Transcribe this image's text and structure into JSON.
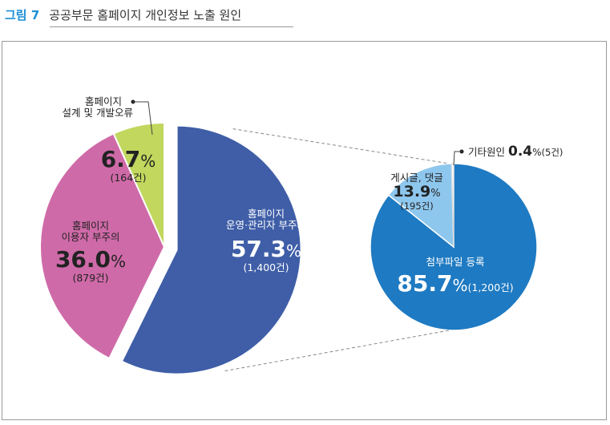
{
  "figure": {
    "number": "그림 7",
    "title": "공공부문 홈페이지 개인정보 노출 원인"
  },
  "chart_data": [
    {
      "type": "pie",
      "slices": [
        {
          "line1": "홈페이지",
          "line2": "운영·관리자 부주의",
          "percent": 57.3,
          "percent_text": "57.3",
          "count_text": "(1,400건)",
          "color": "#3f5ea7"
        },
        {
          "line1": "홈페이지",
          "line2": "이용자 부주의",
          "percent": 36.0,
          "percent_text": "36.0",
          "count_text": "(879건)",
          "color": "#cf6aa8"
        },
        {
          "line1": "홈페이지",
          "line2": "설계 및 개발오류",
          "percent": 6.7,
          "percent_text": "6.7",
          "count_text": "(164건)",
          "color": "#c1d75e"
        }
      ],
      "exploded": "홈페이지 운영·관리자 부주의"
    },
    {
      "type": "pie",
      "slices": [
        {
          "label": "첨부파일 등록",
          "percent": 85.7,
          "percent_text": "85.7",
          "count_text": "(1,200건)",
          "color": "#1e7ac2"
        },
        {
          "label": "게시글, 댓글",
          "percent": 13.9,
          "percent_text": "13.9",
          "count_text": "(195건)",
          "color": "#8ec7ee"
        },
        {
          "label": "기타원인",
          "percent": 0.4,
          "percent_text": "0.4",
          "count_text": "(5건)",
          "color": "#ffffff"
        }
      ]
    }
  ],
  "unit": "%"
}
